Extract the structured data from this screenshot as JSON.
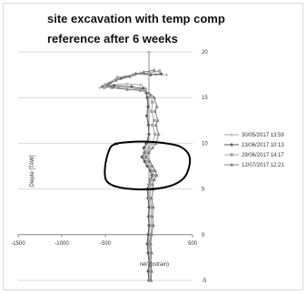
{
  "chart_data": {
    "type": "line",
    "title": "site excavation with temp comp\nreference after 6 weeks",
    "xlabel": "rek (µstrain)",
    "ylabel": "Diepte [TAW]",
    "xlim": [
      -1500,
      500
    ],
    "ylim": [
      -5,
      20
    ],
    "x_ticks": [
      "-1500",
      "-1000",
      "-500",
      "0",
      "500"
    ],
    "y_ticks": [
      "20",
      "15",
      "10",
      "5",
      "0",
      "-5"
    ],
    "grid": "horizontal",
    "legend_position": "right",
    "series": [
      {
        "name": "30/05/2017 13:59",
        "color": "#a6a6a6",
        "marker": "plus",
        "points": [
          [
            200,
            17.5
          ],
          [
            80,
            17.5
          ],
          [
            -100,
            17.7
          ],
          [
            -280,
            17.3
          ],
          [
            -450,
            16.6
          ],
          [
            -560,
            16.1
          ],
          [
            -450,
            16.4
          ],
          [
            -250,
            16.5
          ],
          [
            -100,
            16.4
          ],
          [
            -40,
            16.0
          ],
          [
            -20,
            15.0
          ],
          [
            -15,
            14.0
          ],
          [
            -20,
            13.0
          ],
          [
            -10,
            12.0
          ],
          [
            0,
            11.0
          ],
          [
            -20,
            10.0
          ],
          [
            -40,
            9.5
          ],
          [
            -30,
            9.0
          ],
          [
            -60,
            8.5
          ],
          [
            -40,
            8.0
          ],
          [
            -20,
            7.5
          ],
          [
            10,
            7.0
          ],
          [
            30,
            6.5
          ],
          [
            10,
            6.0
          ],
          [
            0,
            5.5
          ],
          [
            -10,
            5.0
          ],
          [
            0,
            4.0
          ],
          [
            10,
            3.0
          ],
          [
            0,
            2.0
          ],
          [
            10,
            1.0
          ],
          [
            0,
            0.0
          ],
          [
            -10,
            -1.0
          ],
          [
            0,
            -2.0
          ],
          [
            10,
            -3.0
          ],
          [
            0,
            -4.0
          ],
          [
            5,
            -5.0
          ]
        ]
      },
      {
        "name": "13/06/2017 10:13",
        "color": "#595959",
        "marker": "diamond",
        "points": [
          [
            140,
            17.6
          ],
          [
            20,
            17.5
          ],
          [
            -150,
            17.6
          ],
          [
            -320,
            17.1
          ],
          [
            -470,
            16.5
          ],
          [
            -530,
            16.2
          ],
          [
            -400,
            16.3
          ],
          [
            -200,
            16.2
          ],
          [
            -70,
            16.0
          ],
          [
            -30,
            15.5
          ],
          [
            -20,
            15.0
          ],
          [
            -10,
            14.0
          ],
          [
            -25,
            13.0
          ],
          [
            -5,
            12.0
          ],
          [
            0,
            11.0
          ],
          [
            -30,
            10.0
          ],
          [
            -60,
            9.5
          ],
          [
            -50,
            9.0
          ],
          [
            -80,
            8.5
          ],
          [
            -50,
            8.0
          ],
          [
            -20,
            7.5
          ],
          [
            20,
            7.0
          ],
          [
            40,
            6.5
          ],
          [
            20,
            6.0
          ],
          [
            0,
            5.5
          ],
          [
            -20,
            5.0
          ],
          [
            -10,
            4.0
          ],
          [
            0,
            3.0
          ],
          [
            -5,
            2.0
          ],
          [
            0,
            1.0
          ],
          [
            -10,
            0.0
          ],
          [
            -20,
            -1.0
          ],
          [
            -10,
            -2.0
          ],
          [
            0,
            -3.0
          ],
          [
            -10,
            -4.0
          ],
          [
            0,
            -5.0
          ]
        ]
      },
      {
        "name": "29/06/2017 14:17",
        "color": "#a6a6a6",
        "marker": "square",
        "points": [
          [
            120,
            17.9
          ],
          [
            0,
            17.7
          ],
          [
            -180,
            17.5
          ],
          [
            -360,
            17.2
          ],
          [
            -500,
            16.4
          ],
          [
            -510,
            16.1
          ],
          [
            -350,
            16.1
          ],
          [
            -150,
            16.0
          ],
          [
            -40,
            15.8
          ],
          [
            20,
            15.2
          ],
          [
            40,
            14.5
          ],
          [
            30,
            13.5
          ],
          [
            60,
            12.5
          ],
          [
            40,
            12.0
          ],
          [
            70,
            11.0
          ],
          [
            40,
            10.0
          ],
          [
            0,
            9.5
          ],
          [
            -30,
            9.0
          ],
          [
            -50,
            8.5
          ],
          [
            -20,
            8.0
          ],
          [
            10,
            7.5
          ],
          [
            40,
            7.0
          ],
          [
            60,
            6.5
          ],
          [
            30,
            6.0
          ],
          [
            10,
            5.5
          ],
          [
            20,
            5.0
          ],
          [
            10,
            4.0
          ],
          [
            30,
            3.0
          ],
          [
            20,
            2.0
          ],
          [
            30,
            1.0
          ],
          [
            20,
            0.0
          ],
          [
            10,
            -1.0
          ],
          [
            20,
            -2.0
          ],
          [
            10,
            -3.0
          ],
          [
            20,
            -4.0
          ],
          [
            15,
            -5.0
          ]
        ]
      },
      {
        "name": "12/07/2017 12:21",
        "color": "#7f7f7f",
        "marker": "triangle",
        "points": [
          [
            60,
            18.0
          ],
          [
            -60,
            17.8
          ],
          [
            -220,
            17.3
          ],
          [
            -380,
            16.9
          ],
          [
            -480,
            16.3
          ],
          [
            -420,
            16.1
          ],
          [
            -250,
            15.9
          ],
          [
            -100,
            15.8
          ],
          [
            0,
            15.5
          ],
          [
            60,
            15.0
          ],
          [
            90,
            14.0
          ],
          [
            70,
            13.5
          ],
          [
            100,
            12.5
          ],
          [
            80,
            12.0
          ],
          [
            110,
            11.0
          ],
          [
            80,
            10.0
          ],
          [
            40,
            9.5
          ],
          [
            0,
            9.0
          ],
          [
            -30,
            8.5
          ],
          [
            10,
            8.0
          ],
          [
            40,
            7.5
          ],
          [
            70,
            7.0
          ],
          [
            90,
            6.5
          ],
          [
            60,
            6.0
          ],
          [
            40,
            5.5
          ],
          [
            50,
            5.0
          ],
          [
            30,
            4.0
          ],
          [
            50,
            3.0
          ],
          [
            40,
            2.0
          ],
          [
            50,
            1.0
          ],
          [
            30,
            0.0
          ],
          [
            20,
            -1.0
          ],
          [
            30,
            -2.0
          ],
          [
            20,
            -3.0
          ],
          [
            30,
            -4.0
          ],
          [
            25,
            -5.0
          ]
        ]
      }
    ]
  }
}
